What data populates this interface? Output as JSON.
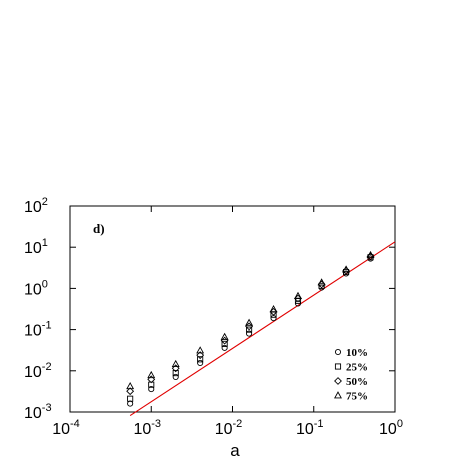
{
  "chart_data": {
    "type": "scatter",
    "panel_label": "d)",
    "xlabel": "a",
    "ylabel": "",
    "x_scale": "log",
    "y_scale": "log",
    "xlim": [
      0.0001,
      1
    ],
    "ylim": [
      0.001,
      100
    ],
    "x_ticks": [
      {
        "base": "10",
        "exp": "-4",
        "value": 0.0001
      },
      {
        "base": "10",
        "exp": "-3",
        "value": 0.001
      },
      {
        "base": "10",
        "exp": "-2",
        "value": 0.01
      },
      {
        "base": "10",
        "exp": "-1",
        "value": 0.1
      },
      {
        "base": "10",
        "exp": "0",
        "value": 1
      }
    ],
    "y_ticks": [
      {
        "base": "10",
        "exp": "-3",
        "value": 0.001
      },
      {
        "base": "10",
        "exp": "-2",
        "value": 0.01
      },
      {
        "base": "10",
        "exp": "-1",
        "value": 0.1
      },
      {
        "base": "10",
        "exp": "0",
        "value": 1
      },
      {
        "base": "10",
        "exp": "1",
        "value": 10
      },
      {
        "base": "10",
        "exp": "2",
        "value": 100
      }
    ],
    "legend_position": "bottom-right",
    "series": [
      {
        "name": "10%",
        "marker": "circle",
        "x": [
          0.00055,
          0.001,
          0.002,
          0.004,
          0.008,
          0.016,
          0.032,
          0.064,
          0.125,
          0.25,
          0.5
        ],
        "y": [
          0.0016,
          0.0036,
          0.0071,
          0.0155,
          0.036,
          0.08,
          0.19,
          0.43,
          1.05,
          2.3,
          5.3
        ]
      },
      {
        "name": "25%",
        "marker": "square",
        "x": [
          0.00055,
          0.001,
          0.002,
          0.004,
          0.008,
          0.016,
          0.032,
          0.064,
          0.125,
          0.25,
          0.5
        ],
        "y": [
          0.0021,
          0.0046,
          0.0088,
          0.019,
          0.045,
          0.1,
          0.23,
          0.5,
          1.15,
          2.5,
          5.7
        ]
      },
      {
        "name": "50%",
        "marker": "diamond",
        "x": [
          0.00055,
          0.001,
          0.002,
          0.004,
          0.008,
          0.016,
          0.032,
          0.064,
          0.125,
          0.25,
          0.5
        ],
        "y": [
          0.0032,
          0.0062,
          0.0115,
          0.024,
          0.054,
          0.12,
          0.27,
          0.57,
          1.25,
          2.65,
          6.0
        ]
      },
      {
        "name": "75%",
        "marker": "triangle",
        "x": [
          0.00055,
          0.001,
          0.002,
          0.004,
          0.008,
          0.016,
          0.032,
          0.064,
          0.125,
          0.25,
          0.5
        ],
        "y": [
          0.0042,
          0.0078,
          0.0145,
          0.031,
          0.066,
          0.145,
          0.31,
          0.65,
          1.38,
          2.85,
          6.4
        ]
      }
    ],
    "fit_line": {
      "color": "#e00000",
      "x": [
        0.00055,
        1
      ],
      "y": [
        0.00082,
        13.5
      ]
    }
  }
}
